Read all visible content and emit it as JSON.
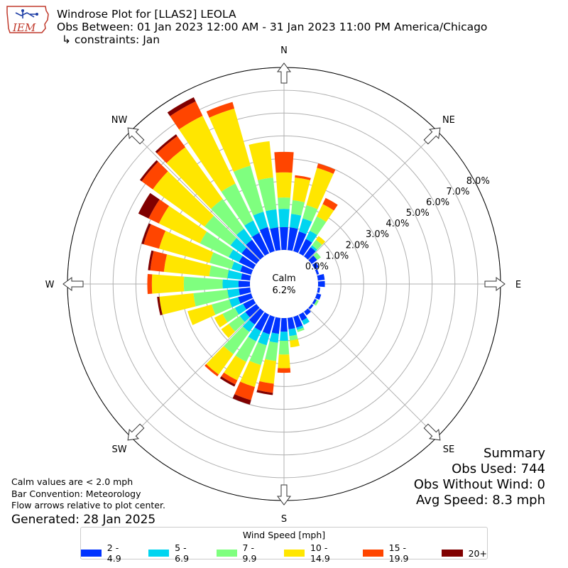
{
  "header": {
    "title": "Windrose Plot for [LLAS2] LEOLA",
    "subtitle": "Obs Between: 01 Jan 2023 12:00 AM - 31 Jan 2023 11:00 PM America/Chicago",
    "constraints": "↳ constraints: Jan",
    "logo_text": "IEM"
  },
  "summary": {
    "heading": "Summary",
    "obs_used": "Obs Used: 744",
    "obs_without_wind": "Obs Without Wind: 0",
    "avg_speed": "Avg Speed: 8.3 mph"
  },
  "notes": {
    "calm_note": "Calm values are < 2.0 mph",
    "bar_convention": "Bar Convention: Meteorology",
    "flow_arrows": "Flow arrows relative to plot center.",
    "generated": "Generated: 28 Jan 2025"
  },
  "chart_data": {
    "type": "windrose",
    "calm_label": "Calm",
    "calm_value": "6.2%",
    "radial_unit": "%",
    "radial_range": [
      0,
      8
    ],
    "radial_tick_labels": [
      "0.0%",
      "1.0%",
      "2.0%",
      "3.0%",
      "4.0%",
      "5.0%",
      "6.0%",
      "7.0%",
      "8.0%"
    ],
    "directions": [
      "N",
      "NE",
      "E",
      "SE",
      "S",
      "SW",
      "W",
      "NW"
    ],
    "legend_title": "Wind Speed [mph]",
    "bins": [
      {
        "name": "2 - 4.9",
        "color": "#0033ff"
      },
      {
        "name": "5 - 6.9",
        "color": "#00d5f0"
      },
      {
        "name": "7 - 9.9",
        "color": "#7fff7f"
      },
      {
        "name": "10 - 14.9",
        "color": "#ffe600"
      },
      {
        "name": "15 - 19.9",
        "color": "#ff4500"
      },
      {
        "name": "20+",
        "color": "#800000"
      }
    ],
    "sector_directions_deg": [
      0,
      10,
      20,
      30,
      40,
      50,
      60,
      70,
      80,
      90,
      100,
      110,
      120,
      130,
      140,
      150,
      160,
      170,
      180,
      190,
      200,
      210,
      220,
      230,
      240,
      250,
      260,
      270,
      280,
      290,
      300,
      310,
      320,
      330,
      340,
      350
    ],
    "cumulative_percent": [
      [
        1.0,
        1.8,
        2.3,
        3.4,
        4.3,
        4.3
      ],
      [
        1.0,
        1.6,
        2.2,
        3.2,
        3.3,
        3.3
      ],
      [
        0.9,
        1.5,
        2.1,
        3.8,
        4.0,
        4.0
      ],
      [
        0.7,
        1.1,
        1.8,
        2.4,
        2.7,
        2.7
      ],
      [
        0.5,
        0.6,
        0.9,
        1.1,
        1.1,
        1.1
      ],
      [
        0.3,
        0.3,
        0.5,
        0.5,
        0.5,
        0.5
      ],
      [
        0.2,
        0.2,
        0.2,
        0.2,
        0.2,
        0.2
      ],
      [
        0.1,
        0.1,
        0.1,
        0.1,
        0.1,
        0.1
      ],
      [
        0.3,
        0.3,
        0.3,
        0.3,
        0.3,
        0.3
      ],
      [
        0.3,
        0.3,
        0.3,
        0.3,
        0.3,
        0.3
      ],
      [
        0.1,
        0.1,
        0.1,
        0.1,
        0.1,
        0.1
      ],
      [
        0.2,
        0.2,
        0.2,
        0.2,
        0.2,
        0.2
      ],
      [
        0.1,
        0.1,
        0.2,
        0.2,
        0.2,
        0.2
      ],
      [
        0.1,
        0.1,
        0.1,
        0.1,
        0.1,
        0.1
      ],
      [
        0.2,
        0.2,
        0.2,
        0.2,
        0.2,
        0.2
      ],
      [
        0.3,
        0.5,
        0.5,
        0.5,
        0.5,
        0.5
      ],
      [
        0.5,
        0.6,
        0.7,
        0.7,
        0.7,
        0.7
      ],
      [
        0.5,
        0.8,
        1.0,
        1.3,
        1.3,
        1.3
      ],
      [
        0.6,
        1.0,
        1.6,
        2.2,
        2.4,
        2.4
      ],
      [
        0.7,
        1.1,
        1.9,
        2.9,
        3.3,
        3.4
      ],
      [
        0.8,
        1.3,
        2.2,
        3.2,
        3.8,
        4.0
      ],
      [
        0.8,
        1.3,
        2.3,
        3.2,
        3.4,
        3.5
      ],
      [
        0.7,
        1.1,
        2.3,
        3.4,
        3.5,
        3.5
      ],
      [
        0.6,
        0.9,
        1.5,
        1.9,
        1.9,
        1.9
      ],
      [
        0.5,
        0.9,
        1.5,
        1.9,
        1.9,
        1.9
      ],
      [
        0.6,
        1.0,
        1.8,
        2.9,
        2.9,
        2.9
      ],
      [
        0.5,
        1.0,
        2.5,
        4.0,
        4.0,
        4.1
      ],
      [
        0.5,
        1.2,
        2.9,
        4.3,
        4.5,
        4.5
      ],
      [
        0.4,
        1.0,
        1.8,
        3.8,
        4.4,
        4.5
      ],
      [
        0.5,
        0.9,
        1.9,
        4.2,
        4.9,
        5.0
      ],
      [
        0.7,
        1.2,
        2.6,
        4.6,
        5.1,
        5.6
      ],
      [
        0.8,
        1.4,
        2.8,
        5.6,
        6.2,
        6.3
      ],
      [
        0.9,
        1.5,
        3.1,
        5.9,
        6.5,
        6.6
      ],
      [
        1.0,
        1.6,
        3.4,
        6.7,
        7.4,
        7.6
      ],
      [
        1.1,
        1.8,
        3.9,
        6.5,
        6.8,
        6.8
      ],
      [
        1.0,
        1.8,
        3.2,
        4.8,
        4.8,
        4.8
      ]
    ]
  }
}
